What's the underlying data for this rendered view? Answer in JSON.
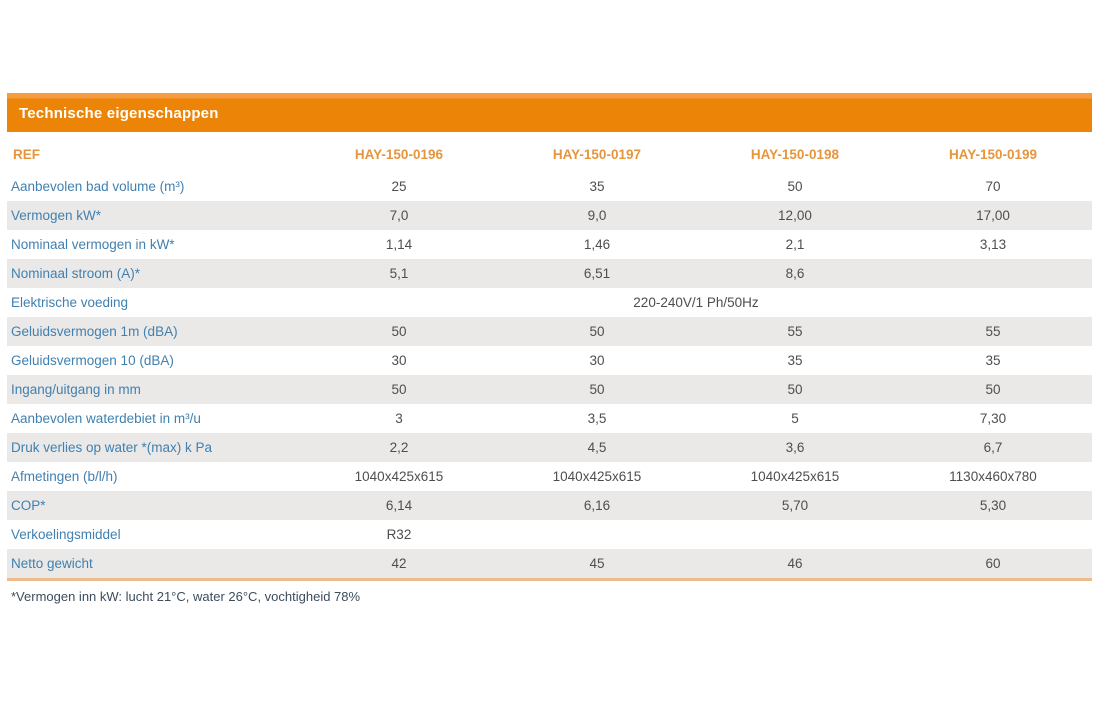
{
  "table": {
    "title": "Technische eigenschappen",
    "ref_label": "REF",
    "columns": [
      "HAY-150-0196",
      "HAY-150-0197",
      "HAY-150-0198",
      "HAY-150-0199"
    ],
    "rows": [
      {
        "label": "Aanbevolen bad volume (m³)",
        "values": [
          "25",
          "35",
          "50",
          "70"
        ]
      },
      {
        "label": "Vermogen kW*",
        "values": [
          "7,0",
          "9,0",
          "12,00",
          "17,00"
        ]
      },
      {
        "label": "Nominaal vermogen in kW*",
        "values": [
          "1,14",
          "1,46",
          "2,1",
          "3,13"
        ]
      },
      {
        "label": "Nominaal stroom (A)*",
        "values": [
          "5,1",
          "6,51",
          "8,6",
          ""
        ]
      },
      {
        "label": "Elektrische voeding",
        "span_value": "220-240V/1 Ph/50Hz"
      },
      {
        "label": "Geluidsvermogen 1m (dBA)",
        "values": [
          "50",
          "50",
          "55",
          "55"
        ]
      },
      {
        "label": "Geluidsvermogen 10 (dBA)",
        "values": [
          "30",
          "30",
          "35",
          "35"
        ]
      },
      {
        "label": "Ingang/uitgang in mm",
        "values": [
          "50",
          "50",
          "50",
          "50"
        ]
      },
      {
        "label": "Aanbevolen waterdebiet in m³/u",
        "values": [
          "3",
          "3,5",
          "5",
          "7,30"
        ]
      },
      {
        "label": "Druk verlies op water *(max) k Pa",
        "values": [
          "2,2",
          "4,5",
          "3,6",
          "6,7"
        ]
      },
      {
        "label": "Afmetingen (b/l/h)",
        "values": [
          "1040x425x615",
          "1040x425x615",
          "1040x425x615",
          "1130x460x780"
        ]
      },
      {
        "label": "COP*",
        "values": [
          "6,14",
          "6,16",
          "5,70",
          "5,30"
        ]
      },
      {
        "label": "Verkoelingsmiddel",
        "values": [
          "R32",
          "",
          "",
          ""
        ]
      },
      {
        "label": "Netto gewicht",
        "values": [
          "42",
          "45",
          "46",
          "60"
        ]
      }
    ],
    "footnote": "*Vermogen inn kW: lucht 21°C, water 26°C, vochtigheid 78%"
  },
  "colors": {
    "header_bar": "#ec8408",
    "header_bar_highlight": "#f49c3f",
    "header_text": "#ffffff",
    "column_header_text": "#e6953d",
    "row_label_text": "#4180af",
    "value_text": "#4e4e4e",
    "stripe": "#eae9e8",
    "bottom_border": "#ecbc8c",
    "footnote_text": "#3d4c5e"
  }
}
